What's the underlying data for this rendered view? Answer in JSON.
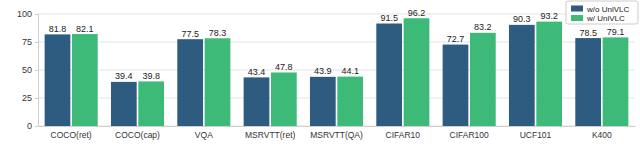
{
  "chart_data": {
    "type": "bar",
    "categories": [
      "COCO(ret)",
      "COCO(cap)",
      "VQA",
      "MSRVTT(ret)",
      "MSRVTT(QA)",
      "CIFAR10",
      "CIFAR100",
      "UCF101",
      "K400"
    ],
    "series": [
      {
        "name": "w/o UniVLC",
        "color": "#2e5b80",
        "values": [
          81.8,
          39.4,
          77.5,
          43.4,
          43.9,
          91.5,
          72.7,
          90.3,
          78.5
        ]
      },
      {
        "name": "w/ UniVLC",
        "color": "#3dba78",
        "values": [
          82.1,
          39.8,
          78.3,
          47.8,
          44.1,
          96.2,
          83.2,
          93.2,
          79.1
        ]
      }
    ],
    "ylim": [
      0,
      100
    ],
    "yticks": [
      0,
      25,
      50,
      75,
      100
    ],
    "grid": true,
    "data_labels": true,
    "legend": "upper right"
  }
}
